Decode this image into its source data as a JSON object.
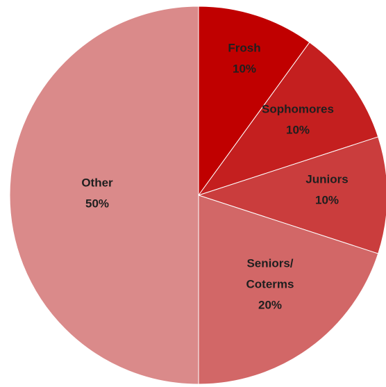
{
  "chart_data": {
    "type": "pie",
    "title": "",
    "start_angle_deg": 0,
    "direction": "clockwise",
    "slices": [
      {
        "label": "Frosh",
        "label_lines": [
          "Frosh"
        ],
        "value_label": "10%",
        "value": 10,
        "color": "#c00000",
        "text_color": "#1f1f1f"
      },
      {
        "label": "Sophomores",
        "label_lines": [
          "Sophomores"
        ],
        "value_label": "10%",
        "value": 10,
        "color": "#c41f1f",
        "text_color": "#1f1f1f"
      },
      {
        "label": "Juniors",
        "label_lines": [
          "Juniors"
        ],
        "value_label": "10%",
        "value": 10,
        "color": "#ca3d3d",
        "text_color": "#1f1f1f"
      },
      {
        "label": "Seniors/ Coterms",
        "label_lines": [
          "Seniors/",
          "Coterms"
        ],
        "value_label": "20%",
        "value": 20,
        "color": "#d26767",
        "text_color": "#1f1f1f"
      },
      {
        "label": "Other",
        "label_lines": [
          "Other"
        ],
        "value_label": "50%",
        "value": 50,
        "color": "#da8a8a",
        "text_color": "#1f1f1f"
      }
    ]
  }
}
